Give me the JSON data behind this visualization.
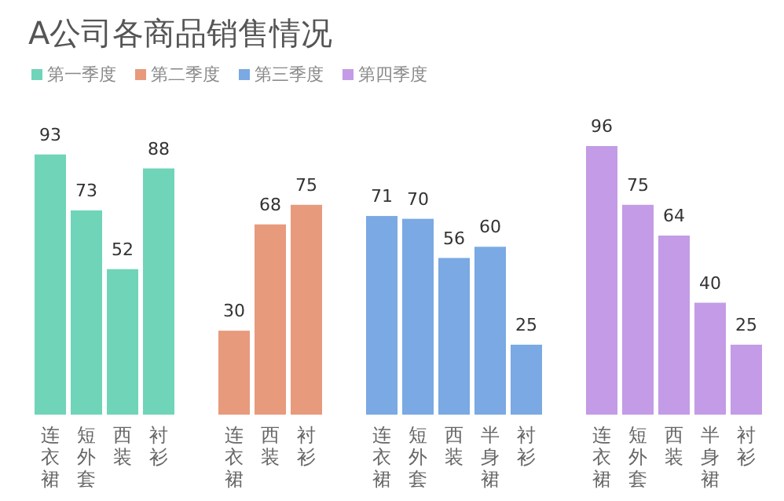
{
  "chart_data": [
    {
      "type": "bar",
      "title": "A公司各商品销售情况",
      "legend": "top left",
      "data_labels": true,
      "categories": [
        "连衣裙",
        "短外套",
        "西装",
        "衬衫"
      ],
      "series": [
        {
          "name": "第一季度",
          "color": "#6fd4b8",
          "values": [
            93,
            73,
            52,
            88
          ]
        }
      ]
    },
    {
      "type": "bar",
      "legend": "top left",
      "data_labels": true,
      "categories": [
        "连衣裙",
        "西装",
        "衬衫"
      ],
      "series": [
        {
          "name": "第二季度",
          "color": "#e89a7c",
          "values": [
            30,
            68,
            75
          ]
        }
      ]
    },
    {
      "type": "bar",
      "legend": "top left",
      "data_labels": true,
      "categories": [
        "连衣裙",
        "短外套",
        "西装",
        "半身裙",
        "衬衫"
      ],
      "series": [
        {
          "name": "第三季度",
          "color": "#7aa9e3",
          "values": [
            71,
            70,
            56,
            60,
            25
          ]
        }
      ]
    },
    {
      "type": "bar",
      "legend": "top left",
      "data_labels": true,
      "categories": [
        "连衣裙",
        "短外套",
        "西装",
        "半身裙",
        "衬衫"
      ],
      "series": [
        {
          "name": "第四季度",
          "color": "#c39be6",
          "values": [
            96,
            75,
            64,
            40,
            25
          ]
        }
      ]
    }
  ]
}
